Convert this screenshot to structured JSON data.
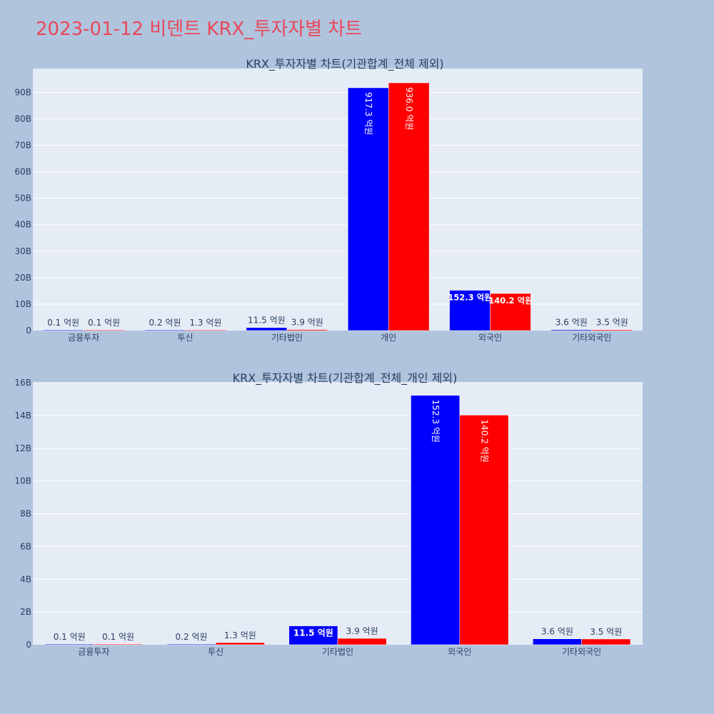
{
  "title": "2023-01-12 비덴트 KRX_투자자별 차트",
  "colors": {
    "buy": "#0000ff",
    "sell": "#ff0000",
    "plot_bg": "#e5ecf6",
    "page_bg": "#b0c4de",
    "title": "#e8485a"
  },
  "chart_data": [
    {
      "type": "bar",
      "title": "KRX_투자자별 차트(기관합계_전체 제외)",
      "categories": [
        "금융투자",
        "투신",
        "기타법인",
        "개인",
        "외국인",
        "기타외국인"
      ],
      "ylim": [
        0,
        99
      ],
      "yticks": [
        0,
        10,
        20,
        30,
        40,
        50,
        60,
        70,
        80,
        90
      ],
      "ytick_labels": [
        "0",
        "10B",
        "20B",
        "30B",
        "40B",
        "50B",
        "60B",
        "70B",
        "80B",
        "90B"
      ],
      "series": [
        {
          "color": "#0000ff",
          "values": [
            0.01,
            0.02,
            1.15,
            91.73,
            15.23,
            0.36
          ],
          "labels": [
            "0.1 억원",
            "0.2 억원",
            "11.5 억원",
            "917.3 억원",
            "152.3 억원",
            "3.6 억원"
          ]
        },
        {
          "color": "#ff0000",
          "values": [
            0.01,
            0.13,
            0.39,
            93.6,
            14.02,
            0.35
          ],
          "labels": [
            "0.1 억원",
            "1.3 억원",
            "3.9 억원",
            "936.0 억원",
            "140.2 억원",
            "3.5 억원"
          ]
        }
      ]
    },
    {
      "type": "bar",
      "title": "KRX_투자자별 차트(기관합계_전체_개인 제외)",
      "categories": [
        "금융투자",
        "투신",
        "기타법인",
        "외국인",
        "기타외국인"
      ],
      "ylim": [
        0,
        16
      ],
      "yticks": [
        0,
        2,
        4,
        6,
        8,
        10,
        12,
        14,
        16
      ],
      "ytick_labels": [
        "0",
        "2B",
        "4B",
        "6B",
        "8B",
        "10B",
        "12B",
        "14B",
        "16B"
      ],
      "series": [
        {
          "color": "#0000ff",
          "values": [
            0.01,
            0.02,
            1.15,
            15.23,
            0.36
          ],
          "labels": [
            "0.1 억원",
            "0.2 억원",
            "11.5 억원",
            "152.3 억원",
            "3.6 억원"
          ]
        },
        {
          "color": "#ff0000",
          "values": [
            0.01,
            0.13,
            0.39,
            14.02,
            0.35
          ],
          "labels": [
            "0.1 억원",
            "1.3 억원",
            "3.9 억원",
            "140.2 억원",
            "3.5 억원"
          ]
        }
      ]
    }
  ]
}
